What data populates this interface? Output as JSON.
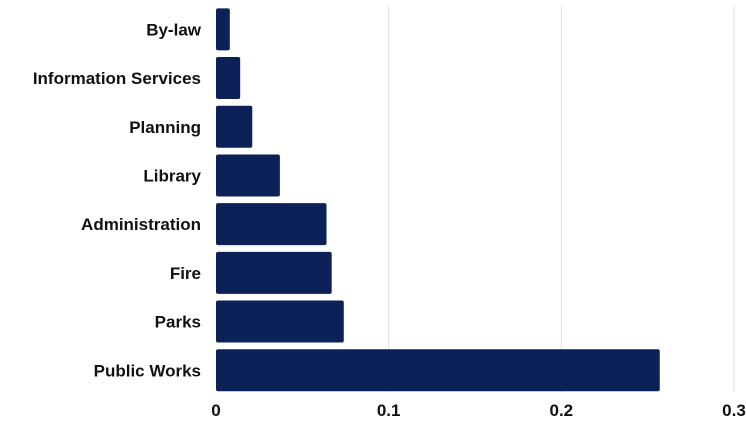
{
  "chart_data": {
    "type": "bar",
    "orientation": "horizontal",
    "title": "",
    "xlabel": "",
    "ylabel": "",
    "categories": [
      "By-law",
      "Information Services",
      "Planning",
      "Library",
      "Administration",
      "Fire",
      "Parks",
      "Public Works"
    ],
    "values": [
      0.008,
      0.014,
      0.021,
      0.037,
      0.064,
      0.067,
      0.074,
      0.257
    ],
    "xlim": [
      0,
      0.3
    ],
    "xticks": [
      "0",
      "0.1",
      "0.2",
      "0.3"
    ],
    "grid": "vertical",
    "legend": "none",
    "bar_color": "#0b2158",
    "grid_color": "#e2e2e2",
    "text_color": "#111111"
  }
}
